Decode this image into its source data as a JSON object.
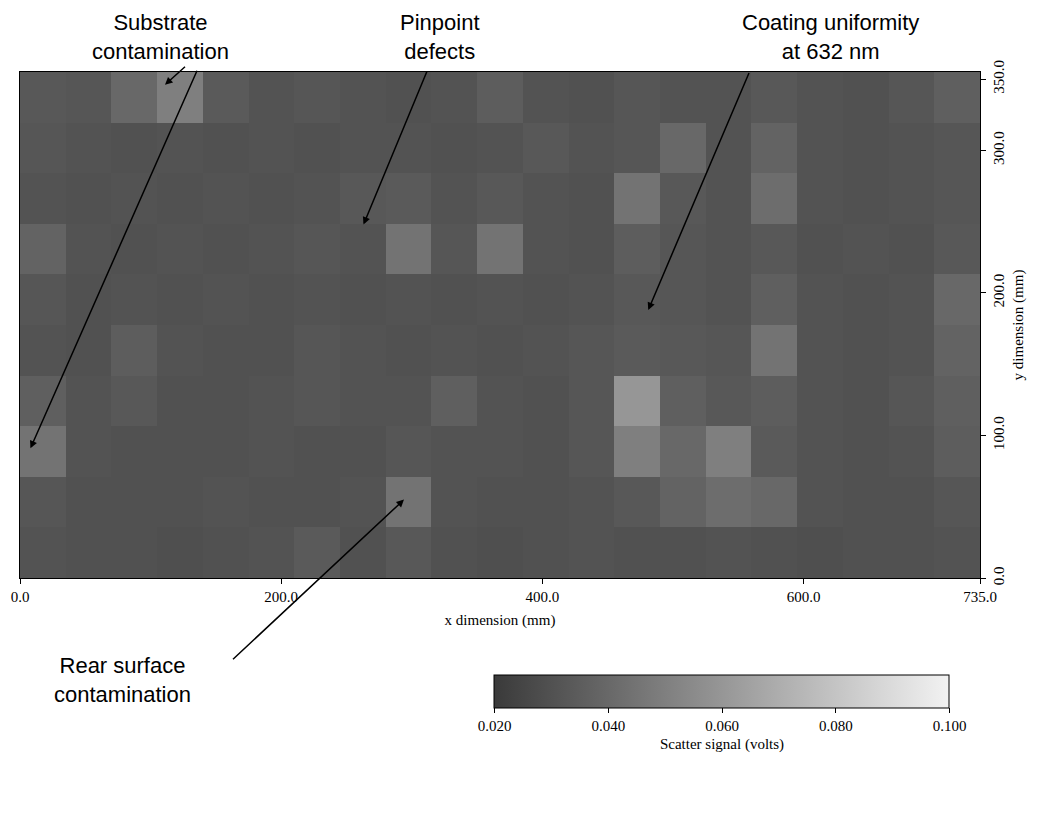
{
  "chart_data": {
    "type": "heatmap",
    "x_label": "x dimension (mm)",
    "y_label": "y dimension (mm)",
    "xlim": [
      0,
      735
    ],
    "ylim": [
      0,
      355
    ],
    "xticks": [
      {
        "value": 0,
        "label": "0.0"
      },
      {
        "value": 200,
        "label": "200.0"
      },
      {
        "value": 400,
        "label": "400.0"
      },
      {
        "value": 600,
        "label": "600.0"
      },
      {
        "value": 735,
        "label": "735.0"
      }
    ],
    "yticks": [
      {
        "value": 0,
        "label": "0.0"
      },
      {
        "value": 100,
        "label": "100.0"
      },
      {
        "value": 200,
        "label": "200.0"
      },
      {
        "value": 300,
        "label": "300.0"
      },
      {
        "value": 350,
        "label": "350.0"
      }
    ],
    "grid": false,
    "x": [
      17.5,
      52.5,
      87.5,
      122.5,
      157.5,
      192.5,
      227.5,
      262.5,
      297.5,
      332.5,
      367.5,
      402.5,
      437.5,
      472.5,
      507.5,
      542.5,
      577.5,
      612.5,
      647.5,
      682.5,
      717.5
    ],
    "y": [
      17.75,
      53.25,
      88.75,
      124.25,
      159.75,
      195.25,
      230.75,
      266.25,
      301.75,
      337.25
    ],
    "cells": [
      [
        0.031,
        0.03,
        0.03,
        0.029,
        0.03,
        0.031,
        0.034,
        0.03,
        0.033,
        0.03,
        0.029,
        0.03,
        0.031,
        0.03,
        0.03,
        0.031,
        0.03,
        0.029,
        0.03,
        0.03,
        0.031
      ],
      [
        0.032,
        0.03,
        0.03,
        0.03,
        0.031,
        0.03,
        0.03,
        0.031,
        0.045,
        0.031,
        0.03,
        0.03,
        0.031,
        0.033,
        0.038,
        0.042,
        0.04,
        0.031,
        0.03,
        0.03,
        0.032
      ],
      [
        0.045,
        0.031,
        0.03,
        0.03,
        0.03,
        0.031,
        0.03,
        0.03,
        0.032,
        0.031,
        0.031,
        0.03,
        0.032,
        0.05,
        0.04,
        0.05,
        0.034,
        0.031,
        0.03,
        0.031,
        0.035
      ],
      [
        0.036,
        0.031,
        0.033,
        0.03,
        0.03,
        0.031,
        0.032,
        0.031,
        0.031,
        0.036,
        0.031,
        0.03,
        0.032,
        0.06,
        0.036,
        0.033,
        0.035,
        0.031,
        0.03,
        0.032,
        0.036
      ],
      [
        0.031,
        0.03,
        0.035,
        0.031,
        0.03,
        0.03,
        0.032,
        0.031,
        0.03,
        0.031,
        0.03,
        0.031,
        0.032,
        0.034,
        0.033,
        0.032,
        0.045,
        0.031,
        0.03,
        0.031,
        0.038
      ],
      [
        0.032,
        0.03,
        0.031,
        0.03,
        0.031,
        0.03,
        0.031,
        0.03,
        0.031,
        0.03,
        0.031,
        0.03,
        0.031,
        0.033,
        0.032,
        0.031,
        0.036,
        0.031,
        0.03,
        0.031,
        0.04
      ],
      [
        0.038,
        0.031,
        0.03,
        0.031,
        0.03,
        0.031,
        0.032,
        0.031,
        0.045,
        0.032,
        0.045,
        0.031,
        0.03,
        0.035,
        0.032,
        0.031,
        0.033,
        0.03,
        0.031,
        0.03,
        0.033
      ],
      [
        0.031,
        0.03,
        0.031,
        0.03,
        0.031,
        0.03,
        0.031,
        0.033,
        0.034,
        0.031,
        0.033,
        0.031,
        0.03,
        0.045,
        0.033,
        0.031,
        0.042,
        0.031,
        0.03,
        0.031,
        0.032
      ],
      [
        0.032,
        0.031,
        0.03,
        0.031,
        0.03,
        0.031,
        0.03,
        0.031,
        0.031,
        0.03,
        0.031,
        0.033,
        0.031,
        0.032,
        0.04,
        0.031,
        0.038,
        0.031,
        0.03,
        0.031,
        0.032
      ],
      [
        0.033,
        0.032,
        0.04,
        0.05,
        0.034,
        0.031,
        0.032,
        0.031,
        0.03,
        0.031,
        0.035,
        0.031,
        0.03,
        0.032,
        0.031,
        0.031,
        0.033,
        0.031,
        0.03,
        0.032,
        0.036
      ]
    ],
    "colorbar": {
      "title": "Scatter signal (volts)",
      "range": [
        0.02,
        0.1
      ],
      "ticks": [
        {
          "value": 0.02,
          "label": "0.020"
        },
        {
          "value": 0.04,
          "label": "0.040"
        },
        {
          "value": 0.06,
          "label": "0.060"
        },
        {
          "value": 0.08,
          "label": "0.080"
        },
        {
          "value": 0.1,
          "label": "0.100"
        }
      ]
    },
    "annotations": [
      {
        "text": [
          "Substrate",
          "contamination"
        ],
        "targets": [
          [
            111,
            346
          ],
          [
            8,
            91
          ]
        ]
      },
      {
        "text": [
          "Pinpoint",
          "defects"
        ],
        "targets": [
          [
            263,
            248
          ]
        ]
      },
      {
        "text": [
          "Coating uniformity",
          "at 632 nm"
        ],
        "targets": [
          [
            481,
            188
          ]
        ]
      },
      {
        "text": [
          "Rear surface",
          "contamination"
        ],
        "targets": [
          [
            294,
            55
          ]
        ]
      }
    ]
  }
}
